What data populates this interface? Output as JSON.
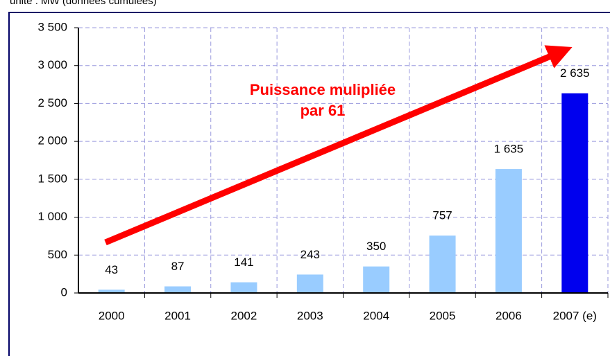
{
  "chart_data": {
    "type": "bar",
    "subtitle": "unité : MW (données cumulées)",
    "annotation": [
      "Puissance mulipliée",
      "par 61"
    ],
    "categories": [
      "2000",
      "2001",
      "2002",
      "2003",
      "2004",
      "2005",
      "2006",
      "2007 (e)"
    ],
    "values": [
      43,
      87,
      141,
      243,
      350,
      757,
      1635,
      2635
    ],
    "value_labels": [
      "43",
      "87",
      "141",
      "243",
      "350",
      "757",
      "1 635",
      "2 635"
    ],
    "colors": [
      "#99ccff",
      "#99ccff",
      "#99ccff",
      "#99ccff",
      "#99ccff",
      "#99ccff",
      "#99ccff",
      "#0000ee"
    ],
    "ylim": [
      0,
      3500
    ],
    "yticks": [
      0,
      {
        "value": 500,
        "label": "500"
      },
      {
        "value": 1000,
        "label": "1 000"
      },
      {
        "value": 1500,
        "label": "1 500"
      },
      {
        "value": 2000,
        "label": "2 000"
      },
      {
        "value": 2500,
        "label": "2 500"
      },
      {
        "value": 3000,
        "label": "3 000"
      },
      {
        "value": 3500,
        "label": "3 500"
      }
    ],
    "grid": true
  }
}
